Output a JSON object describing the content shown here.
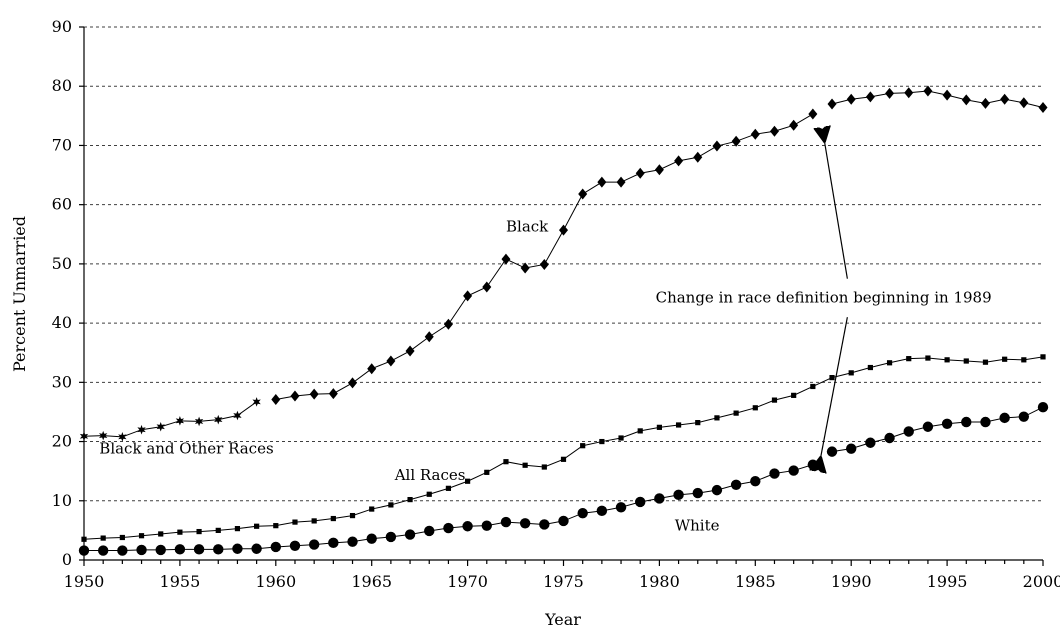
{
  "chart_data": {
    "type": "line",
    "xlabel": "Year",
    "ylabel": "Percent Unmarried",
    "xlim": [
      1950,
      2000
    ],
    "ylim": [
      0,
      90
    ],
    "xticks": [
      1950,
      1955,
      1960,
      1965,
      1970,
      1975,
      1980,
      1985,
      1990,
      1995,
      2000
    ],
    "yticks": [
      0,
      10,
      20,
      30,
      40,
      50,
      60,
      70,
      80,
      90
    ],
    "grid": "horizontal-dashed",
    "series": [
      {
        "name": "Black and Other Races",
        "marker": "star",
        "x": [
          1950,
          1951,
          1952,
          1953,
          1954,
          1955,
          1956,
          1957,
          1958,
          1959
        ],
        "values": [
          20.9,
          21.0,
          20.8,
          22.0,
          22.5,
          23.5,
          23.4,
          23.7,
          24.4,
          26.7
        ]
      },
      {
        "name": "Black",
        "marker": "diamond",
        "x": [
          1960,
          1961,
          1962,
          1963,
          1964,
          1965,
          1966,
          1967,
          1968,
          1969,
          1970,
          1971,
          1972,
          1973,
          1974,
          1975,
          1976,
          1977,
          1978,
          1979,
          1980,
          1981,
          1982,
          1983,
          1984,
          1985,
          1986,
          1987,
          1988
        ],
        "values": [
          27.1,
          27.7,
          28.0,
          28.1,
          29.9,
          32.3,
          33.6,
          35.3,
          37.7,
          39.8,
          44.6,
          46.1,
          50.8,
          49.3,
          49.9,
          55.7,
          61.8,
          63.8,
          63.8,
          65.3,
          65.9,
          67.4,
          68.0,
          69.9,
          70.7,
          71.9,
          72.4,
          73.4,
          75.3
        ]
      },
      {
        "name": "Black",
        "marker": "diamond",
        "x": [
          1989,
          1990,
          1991,
          1992,
          1993,
          1994,
          1995,
          1996,
          1997,
          1998,
          1999,
          2000
        ],
        "values": [
          77.0,
          77.8,
          78.2,
          78.8,
          78.9,
          79.2,
          78.5,
          77.7,
          77.1,
          77.8,
          77.2,
          76.4
        ]
      },
      {
        "name": "All Races",
        "marker": "square",
        "x": [
          1950,
          1951,
          1952,
          1953,
          1954,
          1955,
          1956,
          1957,
          1958,
          1959,
          1960,
          1961,
          1962,
          1963,
          1964,
          1965,
          1966,
          1967,
          1968,
          1969,
          1970,
          1971,
          1972,
          1973,
          1974,
          1975,
          1976,
          1977,
          1978,
          1979,
          1980,
          1981,
          1982,
          1983,
          1984,
          1985,
          1986,
          1987,
          1988,
          1989,
          1990,
          1991,
          1992,
          1993,
          1994,
          1995,
          1996,
          1997,
          1998,
          1999,
          2000
        ],
        "values": [
          3.5,
          3.7,
          3.8,
          4.1,
          4.4,
          4.7,
          4.8,
          5.0,
          5.3,
          5.7,
          5.8,
          6.4,
          6.6,
          7.0,
          7.5,
          8.6,
          9.3,
          10.2,
          11.1,
          12.1,
          13.3,
          14.8,
          16.6,
          16.0,
          15.7,
          17.0,
          19.3,
          20.0,
          20.6,
          21.8,
          22.4,
          22.8,
          23.2,
          24.0,
          24.8,
          25.7,
          27.0,
          27.8,
          29.3,
          30.8,
          31.6,
          32.5,
          33.3,
          34.0,
          34.1,
          33.8,
          33.6,
          33.4,
          33.9,
          33.8,
          34.3
        ]
      },
      {
        "name": "White",
        "marker": "circle",
        "x": [
          1950,
          1951,
          1952,
          1953,
          1954,
          1955,
          1956,
          1957,
          1958,
          1959,
          1960,
          1961,
          1962,
          1963,
          1964,
          1965,
          1966,
          1967,
          1968,
          1969,
          1970,
          1971,
          1972,
          1973,
          1974,
          1975,
          1976,
          1977,
          1978,
          1979,
          1980,
          1981,
          1982,
          1983,
          1984,
          1985,
          1986,
          1987,
          1988
        ],
        "values": [
          1.6,
          1.6,
          1.6,
          1.7,
          1.7,
          1.8,
          1.8,
          1.8,
          1.9,
          1.9,
          2.2,
          2.4,
          2.6,
          2.9,
          3.1,
          3.6,
          3.9,
          4.3,
          4.9,
          5.4,
          5.7,
          5.8,
          6.4,
          6.2,
          6.0,
          6.6,
          7.9,
          8.3,
          8.9,
          9.8,
          10.4,
          11.0,
          11.3,
          11.8,
          12.7,
          13.3,
          14.6,
          15.1,
          16.1
        ]
      },
      {
        "name": "White",
        "marker": "circle",
        "x": [
          1989,
          1990,
          1991,
          1992,
          1993,
          1994,
          1995,
          1996,
          1997,
          1998,
          1999,
          2000
        ],
        "values": [
          18.3,
          18.8,
          19.8,
          20.6,
          21.7,
          22.5,
          23.0,
          23.3,
          23.3,
          24.0,
          24.2,
          25.8
        ]
      }
    ],
    "annotations": [
      {
        "text": "Black",
        "at": [
          1972.0,
          55.5
        ]
      },
      {
        "text": "Black and Other Races",
        "at": [
          1950.8,
          18.0
        ]
      },
      {
        "text": "All Races",
        "at": [
          1966.2,
          13.5
        ]
      },
      {
        "text": "White",
        "at": [
          1980.8,
          5.0
        ]
      },
      {
        "text": "Change in race definition beginning in 1989",
        "at": [
          1979.8,
          43.5
        ]
      }
    ],
    "arrows": [
      {
        "from": [
          1989.8,
          47.5
        ],
        "to": [
          1988.6,
          70.8
        ]
      },
      {
        "from": [
          1989.8,
          41.0
        ],
        "to": [
          1988.4,
          17.2
        ]
      }
    ]
  }
}
